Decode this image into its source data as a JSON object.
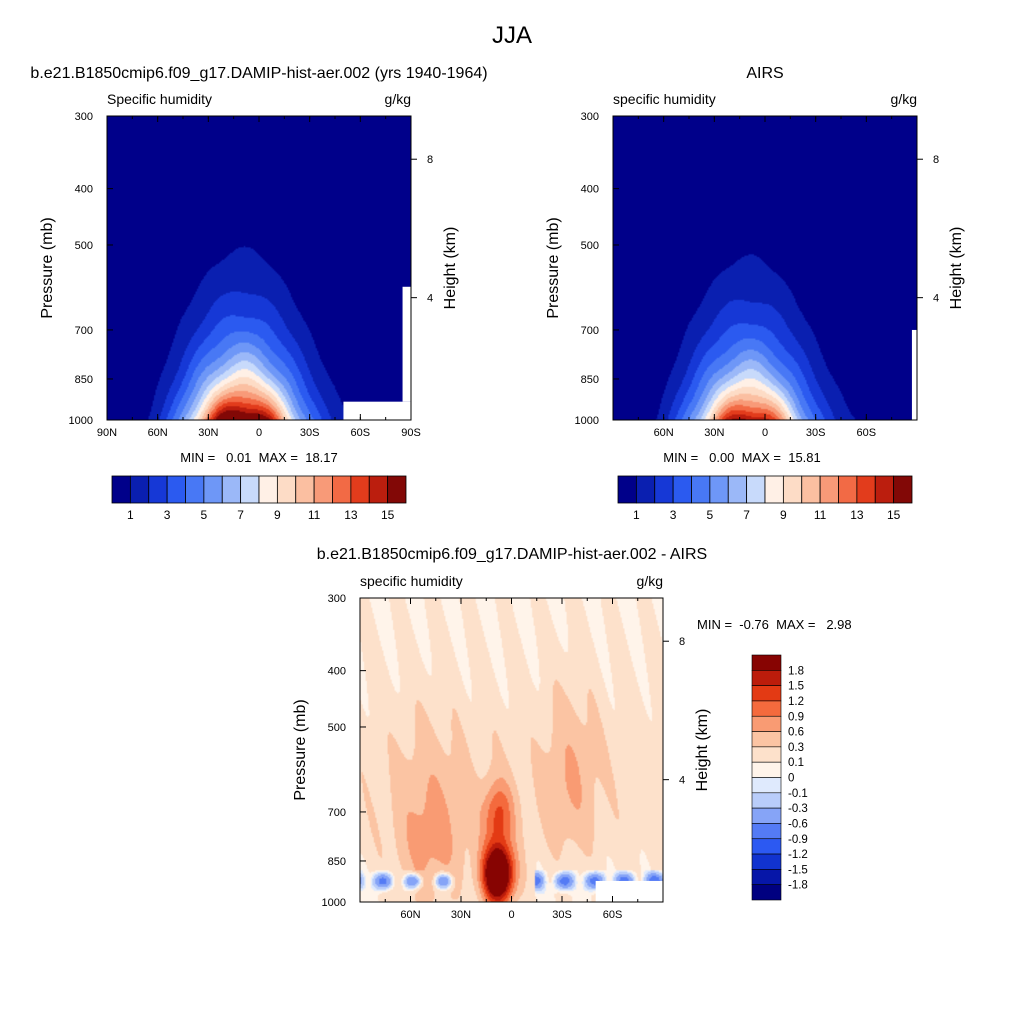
{
  "figure": {
    "title": "JJA"
  },
  "colors": {
    "blue_red_17": [
      "#00008a",
      "#0a1fb0",
      "#1638d6",
      "#2b5af0",
      "#4878f5",
      "#6e97f7",
      "#9bb8f8",
      "#c8dafb",
      "#fff0e6",
      "#fddcc6",
      "#fbbfa1",
      "#f89a78",
      "#f26a45",
      "#e23c1c",
      "#bb1e0e",
      "#820806"
    ],
    "diff_16": [
      "#000080",
      "#0616a8",
      "#1133cf",
      "#2c59f2",
      "#547bf5",
      "#86a4f7",
      "#b9cdfa",
      "#dfeafd",
      "#fff4ea",
      "#fde1cb",
      "#fbc4a3",
      "#f99b73",
      "#f46a3d",
      "#e33a14",
      "#bc1c0b",
      "#870402"
    ],
    "missing": "#ffffff"
  },
  "chart_data": [
    {
      "type": "heatmap",
      "panel_title": "b.e21.B1850cmip6.f09_g17.DAMIP-hist-aer.002 (yrs 1940-1964)",
      "left_label": "Specific humidity",
      "right_label": "g/kg",
      "ylabel": "Pressure (mb)",
      "ylabel_right": "Height (km)",
      "x_ticks": [
        "90N",
        "60N",
        "30N",
        "0",
        "30S",
        "60S",
        "90S"
      ],
      "x_tick_lat": [
        90,
        60,
        30,
        0,
        -30,
        -60,
        -90
      ],
      "xlim": [
        90,
        -90
      ],
      "y_ticks": [
        "300",
        "400",
        "500",
        "700",
        "850",
        "1000"
      ],
      "y_tick_p": [
        300,
        400,
        500,
        700,
        850,
        1000
      ],
      "ylim": [
        1000,
        300
      ],
      "y_scale": "log",
      "y2_ticks": [
        "8",
        "4"
      ],
      "y2_tick_p": [
        356,
        616
      ],
      "stats": "MIN =   0.01  MAX =  18.17",
      "max_value": 18.17,
      "levels": [
        1,
        2,
        3,
        4,
        5,
        6,
        7,
        8,
        9,
        10,
        11,
        12,
        13,
        14,
        15
      ],
      "colorbar_labels": [
        "1",
        "3",
        "5",
        "7",
        "9",
        "11",
        "13",
        "15"
      ],
      "colorbar_label_index": [
        0,
        2,
        4,
        6,
        8,
        10,
        12,
        14
      ],
      "missing_regions": [
        {
          "lat": [
            -50,
            -90
          ],
          "p": [
            930,
            1000
          ]
        },
        {
          "lat": [
            -85,
            -90
          ],
          "p": [
            590,
            930
          ]
        }
      ]
    },
    {
      "type": "heatmap",
      "panel_title": "AIRS",
      "left_label": "specific humidity",
      "right_label": "g/kg",
      "ylabel": "Pressure (mb)",
      "ylabel_right": "Height (km)",
      "x_ticks": [
        "60N",
        "30N",
        "0",
        "30S",
        "60S"
      ],
      "x_tick_lat": [
        60,
        30,
        0,
        -30,
        -60
      ],
      "xlim": [
        90,
        -90
      ],
      "y_ticks": [
        "300",
        "400",
        "500",
        "700",
        "850",
        "1000"
      ],
      "y_tick_p": [
        300,
        400,
        500,
        700,
        850,
        1000
      ],
      "ylim": [
        1000,
        300
      ],
      "y_scale": "log",
      "y2_ticks": [
        "8",
        "4"
      ],
      "y2_tick_p": [
        356,
        616
      ],
      "stats": "MIN =   0.00  MAX =  15.81",
      "max_value": 15.81,
      "levels": [
        1,
        2,
        3,
        4,
        5,
        6,
        7,
        8,
        9,
        10,
        11,
        12,
        13,
        14,
        15
      ],
      "colorbar_labels": [
        "1",
        "3",
        "5",
        "7",
        "9",
        "11",
        "13",
        "15"
      ],
      "colorbar_label_index": [
        0,
        2,
        4,
        6,
        8,
        10,
        12,
        14
      ],
      "missing_regions": [
        {
          "lat": [
            -87,
            -90
          ],
          "p": [
            700,
            1000
          ]
        }
      ]
    },
    {
      "type": "heatmap",
      "panel_title": "b.e21.B1850cmip6.f09_g17.DAMIP-hist-aer.002 - AIRS",
      "left_label": "specific humidity",
      "right_label": "g/kg",
      "ylabel": "Pressure (mb)",
      "ylabel_right": "Height (km)",
      "x_ticks": [
        "60N",
        "30N",
        "0",
        "30S",
        "60S"
      ],
      "x_tick_lat": [
        60,
        30,
        0,
        -30,
        -60
      ],
      "xlim": [
        90,
        -90
      ],
      "y_ticks": [
        "300",
        "400",
        "500",
        "700",
        "850",
        "1000"
      ],
      "y_tick_p": [
        300,
        400,
        500,
        700,
        850,
        1000
      ],
      "ylim": [
        1000,
        300
      ],
      "y_scale": "log",
      "y2_ticks": [
        "8",
        "4"
      ],
      "y2_tick_p": [
        356,
        616
      ],
      "stats": "MIN =  -0.76  MAX =   2.98",
      "levels": [
        -1.8,
        -1.5,
        -1.2,
        -0.9,
        -0.6,
        -0.3,
        -0.1,
        0,
        0.1,
        0.3,
        0.6,
        0.9,
        1.2,
        1.5,
        1.8
      ],
      "colorbar_labels": [
        "1.8",
        "1.5",
        "1.2",
        "0.9",
        "0.6",
        "0.3",
        "0.1",
        "0",
        "-0.1",
        "-0.3",
        "-0.6",
        "-0.9",
        "-1.2",
        "-1.5",
        "-1.8"
      ],
      "missing_regions": [
        {
          "lat": [
            -50,
            -90
          ],
          "p": [
            920,
            1000
          ]
        }
      ]
    }
  ]
}
